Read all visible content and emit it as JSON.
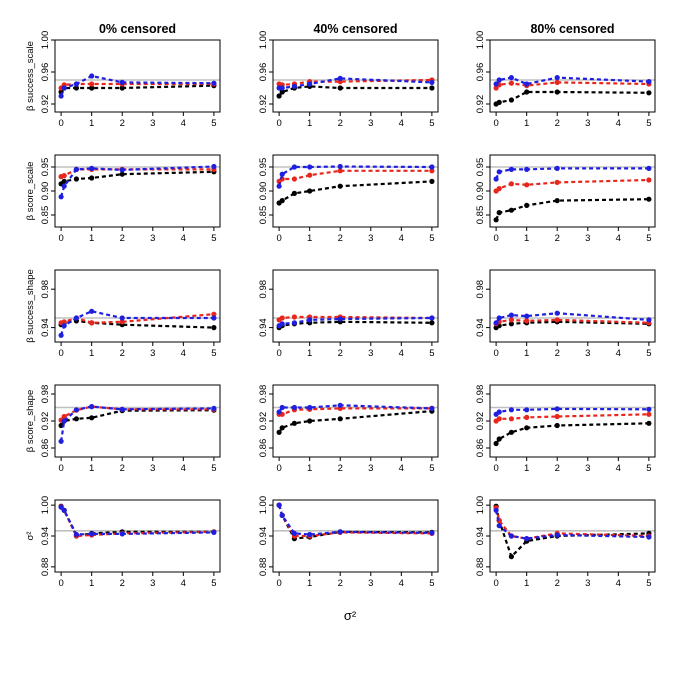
{
  "chart_data": {
    "type": "line",
    "description_free": true,
    "columns": [
      "0% censored",
      "40% censored",
      "80% censored"
    ],
    "xlabel": "σ²",
    "x": [
      0,
      0.1,
      0.5,
      1,
      2,
      5
    ],
    "xticks": [
      0,
      1,
      2,
      3,
      4,
      5
    ],
    "reference_series_colors": {
      "black": "#000000",
      "red": "#e8261c",
      "blue": "#1f1fe0",
      "reference": "#c0c0c0"
    },
    "rows": [
      {
        "ylabel": "β success_scale",
        "ylim": [
          0.91,
          1.0
        ],
        "yticks": [
          0.92,
          0.96,
          1.0
        ],
        "yticklabels": [
          "0.92",
          "0.96",
          "1.00"
        ],
        "reference": 0.95,
        "panels": [
          {
            "black": [
              0.935,
              0.94,
              0.94,
              0.94,
              0.94,
              0.943
            ],
            "red": [
              0.94,
              0.944,
              0.945,
              0.945,
              0.945,
              0.945
            ],
            "blue": [
              0.93,
              0.94,
              0.945,
              0.955,
              0.947,
              0.946
            ]
          },
          {
            "black": [
              0.93,
              0.935,
              0.94,
              0.942,
              0.94,
              0.94
            ],
            "red": [
              0.945,
              0.944,
              0.945,
              0.948,
              0.948,
              0.95
            ],
            "blue": [
              0.94,
              0.94,
              0.942,
              0.945,
              0.952,
              0.947
            ]
          },
          {
            "black": [
              0.92,
              0.922,
              0.925,
              0.935,
              0.935,
              0.934
            ],
            "red": [
              0.94,
              0.944,
              0.946,
              0.943,
              0.947,
              0.945
            ],
            "blue": [
              0.945,
              0.95,
              0.953,
              0.945,
              0.953,
              0.948
            ]
          }
        ]
      },
      {
        "ylabel": "β score_scale",
        "ylim": [
          0.825,
          0.975
        ],
        "yticks": [
          0.85,
          0.9,
          0.95
        ],
        "yticklabels": [
          "0.85",
          "0.90",
          "0.95"
        ],
        "reference": 0.95,
        "panels": [
          {
            "black": [
              0.915,
              0.92,
              0.925,
              0.927,
              0.935,
              0.94
            ],
            "red": [
              0.93,
              0.932,
              0.945,
              0.945,
              0.945,
              0.945
            ],
            "blue": [
              0.888,
              0.91,
              0.945,
              0.947,
              0.944,
              0.951
            ]
          },
          {
            "black": [
              0.875,
              0.88,
              0.895,
              0.9,
              0.91,
              0.92
            ],
            "red": [
              0.92,
              0.925,
              0.925,
              0.933,
              0.942,
              0.942
            ],
            "blue": [
              0.91,
              0.935,
              0.95,
              0.95,
              0.951,
              0.95
            ]
          },
          {
            "black": [
              0.84,
              0.855,
              0.86,
              0.87,
              0.88,
              0.883
            ],
            "red": [
              0.9,
              0.905,
              0.915,
              0.913,
              0.918,
              0.923
            ],
            "blue": [
              0.925,
              0.94,
              0.945,
              0.945,
              0.947,
              0.947
            ]
          }
        ]
      },
      {
        "ylabel": "β success_shape",
        "ylim": [
          0.925,
          1.0
        ],
        "yticks": [
          0.94,
          0.98
        ],
        "yticklabels": [
          "0.94",
          "0.98"
        ],
        "reference": 0.95,
        "panels": [
          {
            "black": [
              0.943,
              0.945,
              0.947,
              0.945,
              0.943,
              0.94
            ],
            "red": [
              0.945,
              0.946,
              0.95,
              0.945,
              0.946,
              0.954
            ],
            "blue": [
              0.932,
              0.942,
              0.95,
              0.957,
              0.95,
              0.95
            ]
          },
          {
            "black": [
              0.94,
              0.942,
              0.944,
              0.945,
              0.946,
              0.945
            ],
            "red": [
              0.948,
              0.95,
              0.951,
              0.951,
              0.951,
              0.95
            ],
            "blue": [
              0.942,
              0.944,
              0.945,
              0.948,
              0.949,
              0.95
            ]
          },
          {
            "black": [
              0.94,
              0.942,
              0.944,
              0.945,
              0.946,
              0.944
            ],
            "red": [
              0.944,
              0.946,
              0.948,
              0.947,
              0.948,
              0.945
            ],
            "blue": [
              0.945,
              0.95,
              0.953,
              0.952,
              0.955,
              0.948
            ]
          }
        ]
      },
      {
        "ylabel": "β score_shape",
        "ylim": [
          0.84,
          1.0
        ],
        "yticks": [
          0.86,
          0.92,
          0.98
        ],
        "yticklabels": [
          "0.86",
          "0.92",
          "0.98"
        ],
        "reference": 0.95,
        "panels": [
          {
            "black": [
              0.91,
              0.92,
              0.925,
              0.927,
              0.943,
              0.944
            ],
            "red": [
              0.922,
              0.93,
              0.944,
              0.952,
              0.946,
              0.946
            ],
            "blue": [
              0.875,
              0.92,
              0.945,
              0.952,
              0.946,
              0.948
            ]
          },
          {
            "black": [
              0.895,
              0.905,
              0.915,
              0.92,
              0.925,
              0.942
            ],
            "red": [
              0.935,
              0.935,
              0.945,
              0.946,
              0.948,
              0.948
            ],
            "blue": [
              0.94,
              0.95,
              0.95,
              0.95,
              0.955,
              0.948
            ]
          },
          {
            "black": [
              0.87,
              0.88,
              0.895,
              0.905,
              0.91,
              0.915
            ],
            "red": [
              0.92,
              0.925,
              0.925,
              0.928,
              0.93,
              0.935
            ],
            "blue": [
              0.935,
              0.94,
              0.945,
              0.945,
              0.947,
              0.946
            ]
          }
        ]
      },
      {
        "ylabel": "σ²",
        "ylim": [
          0.87,
          1.01
        ],
        "yticks": [
          0.88,
          0.94,
          1.0
        ],
        "yticklabels": [
          "0.88",
          "0.94",
          "1.00"
        ],
        "reference": 0.95,
        "panels": [
          {
            "black": [
              0.998,
              0.99,
              0.94,
              0.945,
              0.948,
              0.948
            ],
            "red": [
              0.997,
              0.99,
              0.94,
              0.942,
              0.945,
              0.948
            ],
            "blue": [
              0.996,
              0.99,
              0.943,
              0.944,
              0.944,
              0.947
            ]
          },
          {
            "black": [
              1.0,
              0.98,
              0.935,
              0.938,
              0.948,
              0.947
            ],
            "red": [
              1.0,
              0.98,
              0.94,
              0.94,
              0.947,
              0.945
            ],
            "blue": [
              1.0,
              0.98,
              0.945,
              0.943,
              0.948,
              0.946
            ]
          },
          {
            "black": [
              0.998,
              0.97,
              0.9,
              0.93,
              0.94,
              0.945
            ],
            "red": [
              0.995,
              0.97,
              0.94,
              0.935,
              0.945,
              0.94
            ],
            "blue": [
              0.99,
              0.96,
              0.94,
              0.935,
              0.942,
              0.938
            ]
          }
        ]
      }
    ]
  }
}
